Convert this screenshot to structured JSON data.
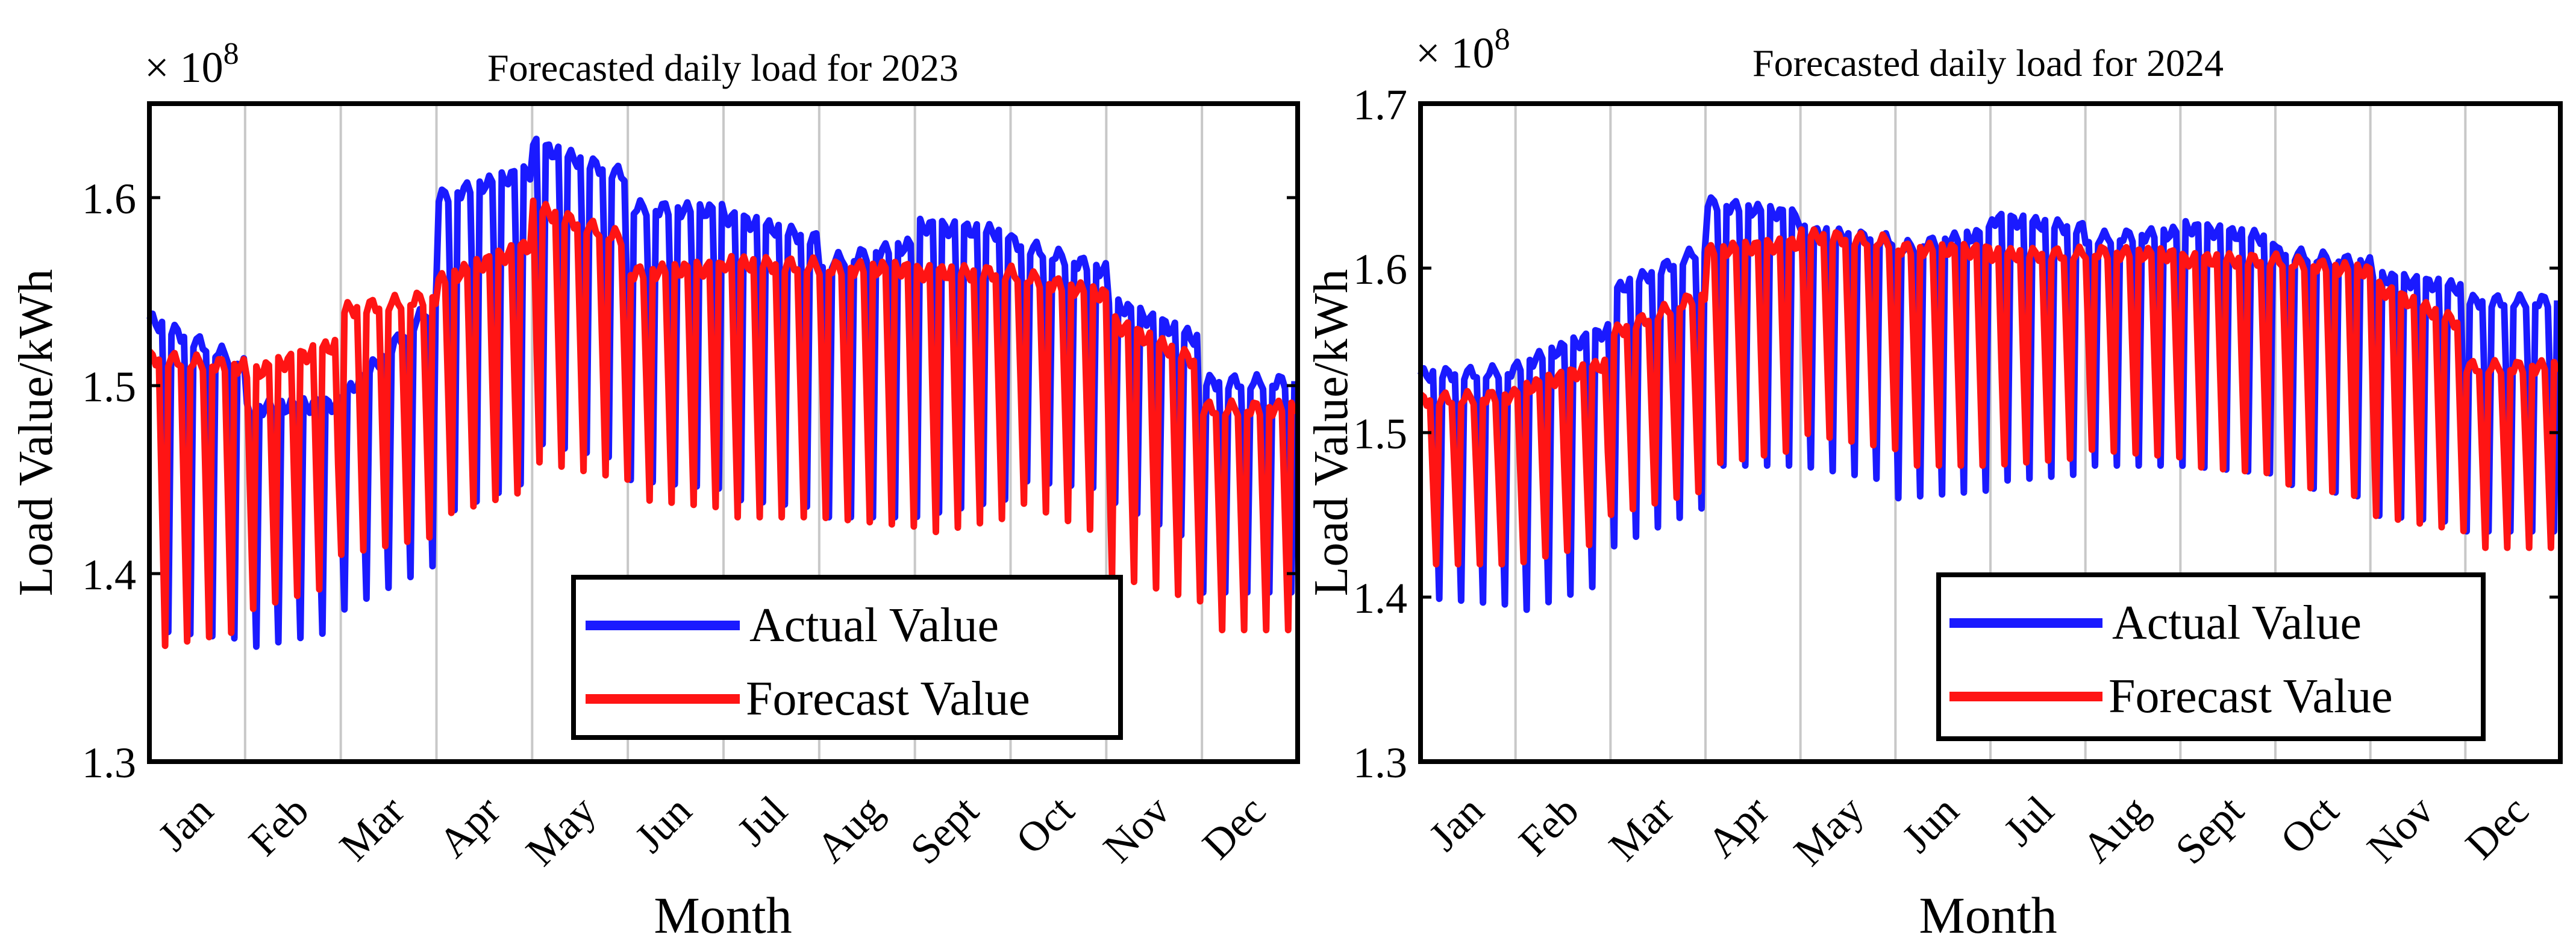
{
  "chart_data": [
    {
      "type": "line",
      "title": "Forecasted daily load for 2023",
      "xlabel": "Month",
      "ylabel": "Load Value/kWh",
      "multiplier": "× 10",
      "exponent": "8",
      "ylim": [
        1.3,
        1.65
      ],
      "xlim": [
        0,
        12
      ],
      "yticks": [
        "1.3",
        "1.4",
        "1.5",
        "1.6"
      ],
      "ytick_values": [
        1.3,
        1.4,
        1.5,
        1.6
      ],
      "months": [
        "Jan",
        "Feb",
        "Mar",
        "Apr",
        "May",
        "Jun",
        "Jul",
        "Aug",
        "Sept",
        "Oct",
        "Nov",
        "Dec"
      ],
      "grid": "vertical at month boundaries",
      "legend_location": "bottom-right",
      "series": [
        {
          "name": "Actual Value",
          "color": "#1a1aff",
          "weekday_by_month": [
            1.535,
            1.488,
            1.492,
            1.6,
            1.628,
            1.595,
            1.59,
            1.565,
            1.585,
            1.577,
            1.545,
            1.502
          ],
          "weekend_by_month": [
            1.37,
            1.36,
            1.38,
            1.43,
            1.47,
            1.45,
            1.44,
            1.43,
            1.43,
            1.45,
            1.44,
            1.39
          ]
        },
        {
          "name": "Forecast Value",
          "color": "#ff1414",
          "weekday_by_month": [
            1.515,
            1.505,
            1.54,
            1.555,
            1.595,
            1.56,
            1.565,
            1.563,
            1.56,
            1.56,
            1.535,
            1.488
          ],
          "weekend_by_month": [
            1.36,
            1.38,
            1.41,
            1.43,
            1.46,
            1.44,
            1.43,
            1.43,
            1.42,
            1.44,
            1.4,
            1.37
          ]
        }
      ]
    },
    {
      "type": "line",
      "title": "Forecasted daily load for 2024",
      "xlabel": "Month",
      "ylabel": "Load Value/kWh",
      "multiplier": "× 10",
      "exponent": "8",
      "ylim": [
        1.3,
        1.7
      ],
      "xlim": [
        0,
        12
      ],
      "yticks": [
        "1.3",
        "1.4",
        "1.5",
        "1.6",
        "1.7"
      ],
      "ytick_values": [
        1.3,
        1.4,
        1.5,
        1.6,
        1.7
      ],
      "months": [
        "Jan",
        "Feb",
        "Mar",
        "Apr",
        "May",
        "Jun",
        "Jul",
        "Aug",
        "Sept",
        "Oct",
        "Nov",
        "Dec"
      ],
      "grid": "vertical at month boundaries",
      "legend_location": "bottom-right",
      "series": [
        {
          "name": "Actual Value",
          "color": "#1a1aff",
          "weekday_by_month": [
            1.535,
            1.54,
            1.585,
            1.64,
            1.622,
            1.612,
            1.63,
            1.618,
            1.625,
            1.61,
            1.595,
            1.58
          ],
          "weekend_by_month": [
            1.4,
            1.39,
            1.43,
            1.48,
            1.48,
            1.46,
            1.47,
            1.48,
            1.48,
            1.47,
            1.45,
            1.44
          ]
        },
        {
          "name": "Forecast Value",
          "color": "#ff1414",
          "weekday_by_month": [
            1.52,
            1.525,
            1.56,
            1.61,
            1.62,
            1.612,
            1.608,
            1.61,
            1.605,
            1.605,
            1.59,
            1.54
          ],
          "weekend_by_month": [
            1.42,
            1.42,
            1.45,
            1.48,
            1.5,
            1.48,
            1.48,
            1.49,
            1.48,
            1.47,
            1.45,
            1.43
          ]
        }
      ]
    }
  ]
}
